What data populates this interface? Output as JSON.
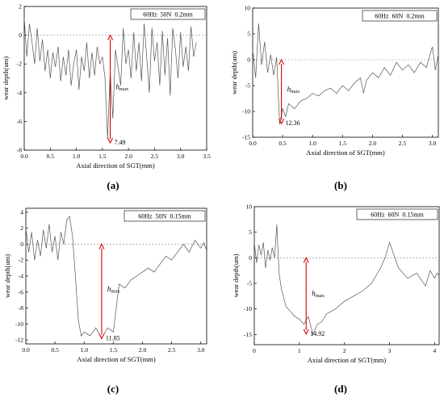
{
  "panels": [
    {
      "label": "(a)",
      "legend": "60Hz  50N  0.2mm",
      "xlabel": "Axial direction of SGT(mm)",
      "ylabel": "wear depth(um)",
      "h_label_main": "h",
      "h_label_sub": "max",
      "chart_data": {
        "type": "line",
        "xlim": [
          0,
          3.5
        ],
        "ylim": [
          -8,
          2
        ],
        "xticks": [
          0.0,
          0.5,
          1.0,
          1.5,
          2.0,
          2.5,
          3.0,
          3.5
        ],
        "yticks": [
          -8,
          -6,
          -4,
          -2,
          0,
          2
        ],
        "xtick_labels": [
          "0.0",
          "0.5",
          "1.0",
          "1.5",
          "2.0",
          "2.5",
          "3.0",
          "3.5"
        ],
        "ytick_labels": [
          "-8",
          "-6",
          "-4",
          "-2",
          "0",
          "2"
        ],
        "baseline": 0,
        "series": [
          {
            "x": [
              0.0,
              0.05,
              0.1,
              0.15,
              0.2,
              0.25,
              0.3,
              0.35,
              0.4,
              0.45,
              0.5,
              0.55,
              0.6,
              0.65,
              0.7,
              0.75,
              0.8,
              0.85,
              0.9,
              0.95,
              1.0,
              1.05,
              1.1,
              1.15,
              1.2,
              1.25,
              1.3,
              1.35,
              1.4,
              1.45,
              1.5,
              1.55,
              1.6,
              1.65,
              1.7,
              1.75,
              1.8,
              1.85,
              1.9,
              1.95,
              2.0,
              2.05,
              2.1,
              2.15,
              2.2,
              2.25,
              2.3,
              2.35,
              2.4,
              2.45,
              2.5,
              2.55,
              2.6,
              2.65,
              2.7,
              2.75,
              2.8,
              2.85,
              2.9,
              2.95,
              3.0,
              3.05,
              3.1,
              3.15,
              3.2,
              3.25,
              3.3
            ],
            "y": [
              1.2,
              -1.5,
              0.8,
              -0.5,
              -2.0,
              0.5,
              -1.8,
              -0.3,
              -2.5,
              -1.0,
              -3.0,
              -1.2,
              -2.2,
              -0.8,
              -3.2,
              -1.5,
              -2.8,
              -1.0,
              -3.5,
              -2.0,
              -1.0,
              -3.8,
              -1.5,
              -2.5,
              -0.5,
              -3.0,
              -1.2,
              -2.8,
              -0.8,
              -2.0,
              -1.5,
              -3.0,
              -7.2,
              -2.5,
              -5.8,
              -1.0,
              -2.2,
              -3.5,
              0.5,
              -2.0,
              -1.0,
              -3.0,
              0.2,
              -2.5,
              -0.5,
              -3.2,
              0.8,
              -1.5,
              -4.0,
              0.5,
              -1.8,
              -0.5,
              -3.5,
              0.3,
              -2.8,
              -0.2,
              -4.2,
              0.5,
              -1.0,
              -3.0,
              0.2,
              -2.2,
              -0.8,
              -2.5,
              0.6,
              -1.5,
              -0.5
            ]
          }
        ],
        "annotation": {
          "x": 1.65,
          "y_top": 0.0,
          "y_bottom": -7.49,
          "value_label": "7.49"
        }
      }
    },
    {
      "label": "(b)",
      "legend": "60Hz  60N  0.2mm",
      "xlabel": "Axial direction of SGT(mm)",
      "ylabel": "wear depth(um)",
      "h_label_main": "h",
      "h_label_sub": "max",
      "chart_data": {
        "type": "line",
        "xlim": [
          0,
          3.1
        ],
        "ylim": [
          -15,
          10
        ],
        "xticks": [
          0.0,
          0.5,
          1.0,
          1.5,
          2.0,
          2.5,
          3.0
        ],
        "yticks": [
          -15,
          -10,
          -5,
          0,
          5,
          10
        ],
        "xtick_labels": [
          "0.0",
          "0.5",
          "1.0",
          "1.5",
          "2.0",
          "2.5",
          "3.0"
        ],
        "ytick_labels": [
          "-15",
          "-10",
          "-5",
          "0",
          "5",
          "10"
        ],
        "baseline": 0,
        "series": [
          {
            "x": [
              0.0,
              0.05,
              0.1,
              0.15,
              0.2,
              0.25,
              0.3,
              0.35,
              0.4,
              0.45,
              0.5,
              0.55,
              0.6,
              0.7,
              0.8,
              0.9,
              1.0,
              1.1,
              1.2,
              1.3,
              1.4,
              1.5,
              1.6,
              1.7,
              1.8,
              1.85,
              1.9,
              2.0,
              2.1,
              2.2,
              2.3,
              2.4,
              2.5,
              2.6,
              2.7,
              2.8,
              2.9,
              3.0,
              3.05,
              3.1
            ],
            "y": [
              2.0,
              -3.5,
              7.0,
              -1.0,
              3.5,
              -2.5,
              1.0,
              -3.0,
              0.5,
              -12.5,
              -9.5,
              -11.0,
              -8.5,
              -9.5,
              -8.0,
              -7.5,
              -6.5,
              -7.0,
              -6.0,
              -5.5,
              -6.5,
              -5.0,
              -6.0,
              -4.5,
              -3.5,
              -6.5,
              -4.0,
              -2.5,
              -3.5,
              -1.5,
              -3.0,
              -0.5,
              -2.0,
              -1.0,
              -2.5,
              -0.5,
              -1.5,
              2.5,
              -2.0,
              1.0
            ]
          }
        ],
        "annotation": {
          "x": 0.48,
          "y_top": 0.0,
          "y_bottom": -12.36,
          "value_label": "12.36"
        }
      }
    },
    {
      "label": "(c)",
      "legend": "60Hz  50N  0.15mm",
      "xlabel": "Axial direction of SGT(mm)",
      "ylabel": "wear depth(um)",
      "h_label_main": "h",
      "h_label_sub": "max",
      "chart_data": {
        "type": "line",
        "xlim": [
          0,
          3.1
        ],
        "ylim": [
          -12.5,
          4.5
        ],
        "xticks": [
          0.0,
          0.5,
          1.0,
          1.5,
          2.0,
          2.5,
          3.0
        ],
        "yticks": [
          -12,
          -10,
          -8,
          -6,
          -4,
          -2,
          0,
          2,
          4
        ],
        "xtick_labels": [
          "0.0",
          "0.5",
          "1.0",
          "1.5",
          "2.0",
          "2.5",
          "3.0"
        ],
        "ytick_labels": [
          "-12",
          "-10",
          "-8",
          "-6",
          "-4",
          "-2",
          "0",
          "2",
          "4"
        ],
        "baseline": 0,
        "series": [
          {
            "x": [
              0.0,
              0.05,
              0.1,
              0.15,
              0.2,
              0.25,
              0.3,
              0.35,
              0.4,
              0.45,
              0.5,
              0.55,
              0.6,
              0.65,
              0.7,
              0.75,
              0.8,
              0.85,
              0.9,
              0.95,
              1.0,
              1.1,
              1.2,
              1.3,
              1.4,
              1.5,
              1.55,
              1.6,
              1.7,
              1.8,
              1.9,
              2.0,
              2.1,
              2.2,
              2.3,
              2.4,
              2.5,
              2.6,
              2.7,
              2.8,
              2.9,
              3.0,
              3.05,
              3.1
            ],
            "y": [
              2.0,
              -1.0,
              1.5,
              -2.0,
              0.5,
              -1.5,
              1.8,
              -0.5,
              2.5,
              -1.0,
              1.0,
              -2.0,
              1.5,
              0.0,
              3.0,
              3.5,
              1.0,
              -4.0,
              -9.5,
              -11.5,
              -11.0,
              -11.5,
              -10.5,
              -11.8,
              -10.5,
              -11.0,
              -8.0,
              -5.0,
              -5.5,
              -4.5,
              -4.0,
              -3.5,
              -3.0,
              -3.5,
              -2.5,
              -1.5,
              -2.0,
              -1.0,
              0.0,
              -1.0,
              0.5,
              -0.5,
              0.2,
              -0.8
            ]
          }
        ],
        "annotation": {
          "x": 1.3,
          "y_top": 0.0,
          "y_bottom": -11.85,
          "value_label": "11.85"
        }
      }
    },
    {
      "label": "(d)",
      "legend": "60Hz  60N  0.15mm",
      "xlabel": "Axial direction of SGT(mm)",
      "ylabel": "wear depth(um)",
      "h_label_main": "h",
      "h_label_sub": "max",
      "chart_data": {
        "type": "line",
        "xlim": [
          0,
          4.1
        ],
        "ylim": [
          -17,
          10
        ],
        "xticks": [
          0,
          1,
          2,
          3,
          4
        ],
        "yticks": [
          -15,
          -10,
          -5,
          0,
          5,
          10
        ],
        "xtick_labels": [
          "0",
          "1",
          "2",
          "3",
          "4"
        ],
        "ytick_labels": [
          "-15",
          "-10",
          "-5",
          "0",
          "5",
          "10"
        ],
        "baseline": 0,
        "series": [
          {
            "x": [
              0.0,
              0.05,
              0.1,
              0.15,
              0.2,
              0.25,
              0.3,
              0.35,
              0.4,
              0.45,
              0.5,
              0.55,
              0.6,
              0.7,
              0.8,
              0.9,
              1.0,
              1.1,
              1.2,
              1.3,
              1.4,
              1.5,
              1.6,
              1.8,
              2.0,
              2.2,
              2.4,
              2.6,
              2.8,
              2.9,
              3.0,
              3.1,
              3.2,
              3.4,
              3.6,
              3.8,
              3.9,
              4.0,
              4.05,
              4.1
            ],
            "y": [
              3.0,
              -1.0,
              2.5,
              0.5,
              3.0,
              -2.0,
              1.5,
              -0.5,
              2.0,
              0.0,
              6.5,
              -3.0,
              -6.0,
              -9.5,
              -10.5,
              -11.5,
              -12.0,
              -13.0,
              -11.5,
              -15.0,
              -13.0,
              -12.5,
              -11.0,
              -10.0,
              -8.5,
              -7.5,
              -6.5,
              -5.0,
              -2.0,
              0.0,
              3.0,
              0.5,
              -2.0,
              -4.0,
              -3.0,
              -5.5,
              -2.5,
              -4.0,
              -3.0,
              -3.5
            ]
          }
        ],
        "annotation": {
          "x": 1.15,
          "y_top": 0.0,
          "y_bottom": -14.92,
          "value_label": "14.92"
        }
      }
    }
  ]
}
